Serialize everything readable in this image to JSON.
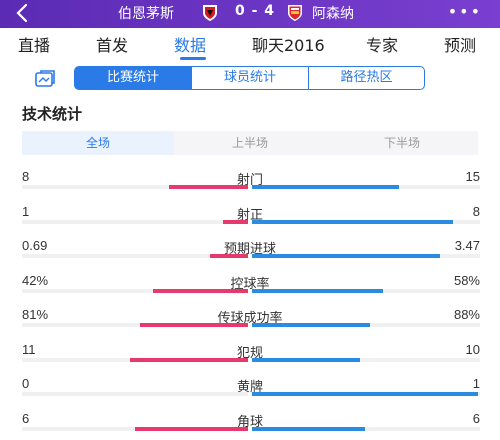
{
  "header": {
    "home_team": "伯恩茅斯",
    "away_team": "阿森纳",
    "score": "0 - 4",
    "back_icon": "back-arrow-icon",
    "more_icon": "more-dots-icon"
  },
  "nav_tabs": [
    "直播",
    "首发",
    "数据",
    "聊天2016",
    "专家",
    "预测"
  ],
  "nav_active": "数据",
  "sub_tabs": [
    "比赛统计",
    "球员统计",
    "路径热区"
  ],
  "sub_active": "比赛统计",
  "section_title": "技术统计",
  "periods": [
    "全场",
    "上半场",
    "下半场"
  ],
  "period_active": "全场",
  "stats": [
    {
      "label": "射门",
      "home": "8",
      "away": "15",
      "home_frac": 0.35,
      "away_frac": 0.65
    },
    {
      "label": "射正",
      "home": "1",
      "away": "8",
      "home_frac": 0.11,
      "away_frac": 0.89
    },
    {
      "label": "预期进球",
      "home": "0.69",
      "away": "3.47",
      "home_frac": 0.17,
      "away_frac": 0.83
    },
    {
      "label": "控球率",
      "home": "42%",
      "away": "58%",
      "home_frac": 0.42,
      "away_frac": 0.58
    },
    {
      "label": "传球成功率",
      "home": "81%",
      "away": "88%",
      "home_frac": 0.48,
      "away_frac": 0.52
    },
    {
      "label": "犯规",
      "home": "11",
      "away": "10",
      "home_frac": 0.52,
      "away_frac": 0.48
    },
    {
      "label": "黄牌",
      "home": "0",
      "away": "1",
      "home_frac": 0.0,
      "away_frac": 1.0
    },
    {
      "label": "角球",
      "home": "6",
      "away": "6",
      "home_frac": 0.5,
      "away_frac": 0.5
    }
  ],
  "colors": {
    "header": "#6a35c4",
    "accent": "#2a7ae8",
    "home": "#e63a6e",
    "away": "#2a8ce0"
  }
}
